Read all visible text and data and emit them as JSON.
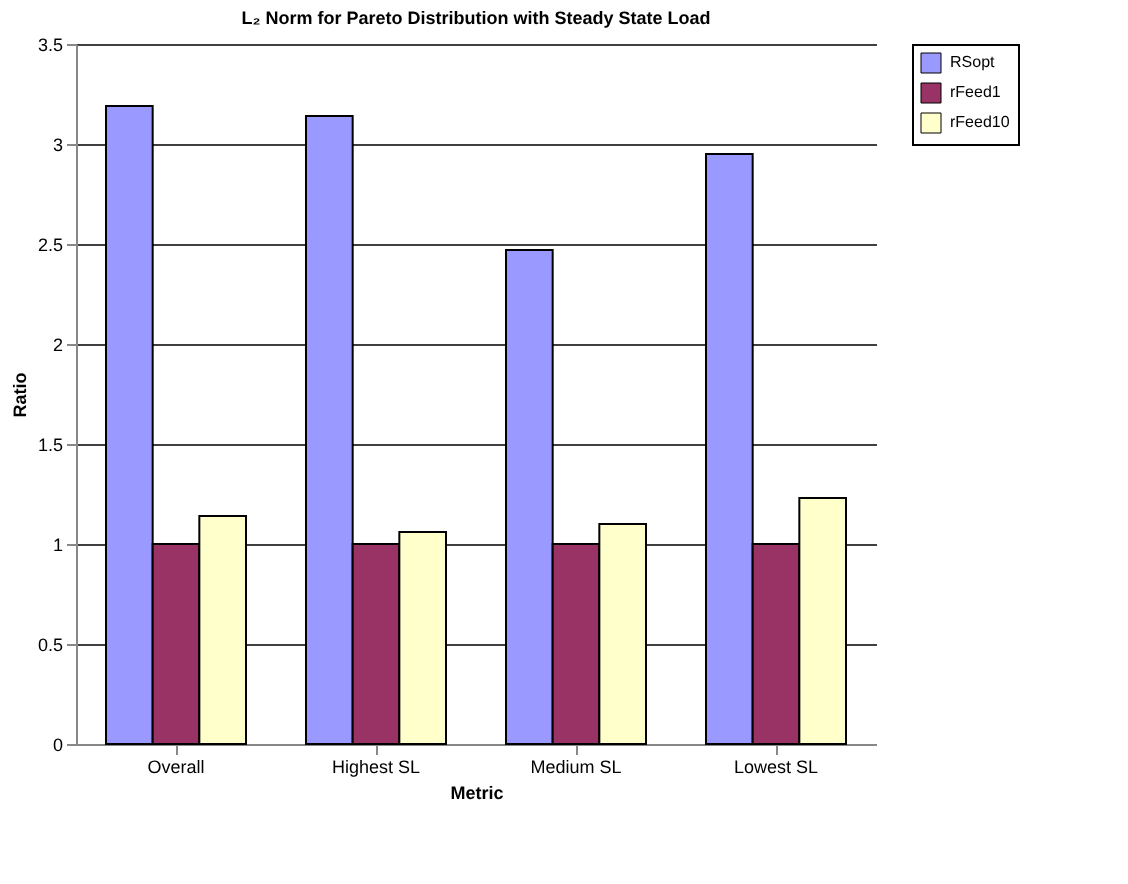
{
  "chart_data": {
    "type": "bar",
    "title": "L₂ Norm for Pareto Distribution with Steady State Load",
    "xlabel": "Metric",
    "ylabel": "Ratio",
    "categories": [
      "Overall",
      "Highest SL",
      "Medium SL",
      "Lowest SL"
    ],
    "series": [
      {
        "name": "RSopt",
        "color": "#9999ff",
        "values": [
          3.19,
          3.14,
          2.47,
          2.95
        ]
      },
      {
        "name": "rFeed1",
        "color": "#993366",
        "values": [
          1,
          1,
          1,
          1
        ]
      },
      {
        "name": "rFeed10",
        "color": "#ffffcc",
        "values": [
          1.14,
          1.06,
          1.1,
          1.23
        ]
      }
    ],
    "ylim": [
      0,
      3.5
    ],
    "yticks": [
      0,
      0.5,
      1,
      1.5,
      2,
      2.5,
      3,
      3.5
    ],
    "grid": "y",
    "legend": "right"
  }
}
